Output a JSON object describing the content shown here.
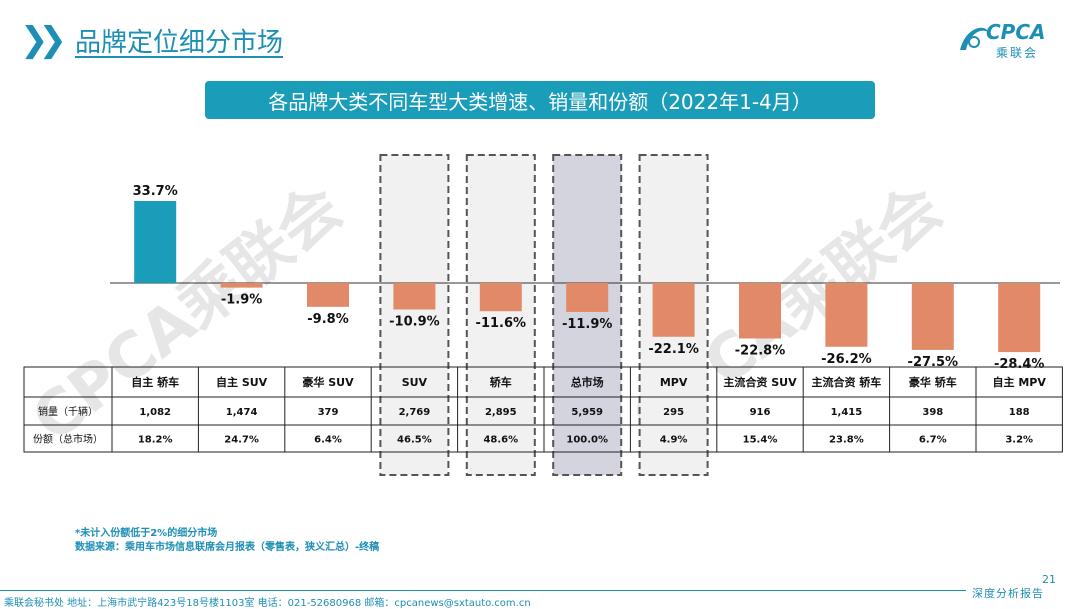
{
  "header": {
    "title": "品牌定位细分市场"
  },
  "logo": {
    "name": "CPCA",
    "sub": "乘联会"
  },
  "banner": {
    "text": "各品牌大类不同车型大类增速、销量和份额（2022年1-4月）"
  },
  "watermark": "CPCA乘联会",
  "colors": {
    "accent": "#1d8fb5",
    "positive_bar": "#1a9db9",
    "negative_bar": "#e28a68",
    "total_highlight": "#d4d4de",
    "box_fill": "#f1f1f1"
  },
  "chart_data": {
    "type": "bar",
    "categories": [
      "自主 轿车",
      "自主 SUV",
      "豪华 SUV",
      "SUV",
      "轿车",
      "总市场",
      "MPV",
      "主流合资 SUV",
      "主流合资 轿车",
      "豪华 轿车",
      "自主 MPV"
    ],
    "values": [
      33.7,
      -1.9,
      -9.8,
      -10.9,
      -11.6,
      -11.9,
      -22.1,
      -22.8,
      -26.2,
      -27.5,
      -28.4
    ],
    "labels": [
      "33.7%",
      "-1.9%",
      "-9.8%",
      "-10.9%",
      "-11.6%",
      "-11.9%",
      "-22.1%",
      "-22.8%",
      "-26.2%",
      "-27.5%",
      "-28.4%"
    ],
    "highlight_boxes": [
      3,
      4,
      5,
      6
    ],
    "highlight_total": 5,
    "table": {
      "rows": [
        {
          "label": "销量（千辆）",
          "values": [
            "1,082",
            "1,474",
            "379",
            "2,769",
            "2,895",
            "5,959",
            "295",
            "916",
            "1,415",
            "398",
            "188"
          ]
        },
        {
          "label": "份额（总市场）",
          "values": [
            "18.2%",
            "24.7%",
            "6.4%",
            "46.5%",
            "48.6%",
            "100.0%",
            "4.9%",
            "15.4%",
            "23.8%",
            "6.7%",
            "3.2%"
          ]
        }
      ]
    }
  },
  "notes": [
    "*未计入份额低于2%的细分市场",
    "数据来源：乘用车市场信息联席会月报表（零售表，狭义汇总）-终稿"
  ],
  "page_number": "21",
  "footer": {
    "text": "乘联会秘书处   地址：上海市武宁路423号18号楼1103室  电话：021-52680968   邮箱：cpcanews@sxtauto.com.cn",
    "right": "深度分析报告"
  }
}
